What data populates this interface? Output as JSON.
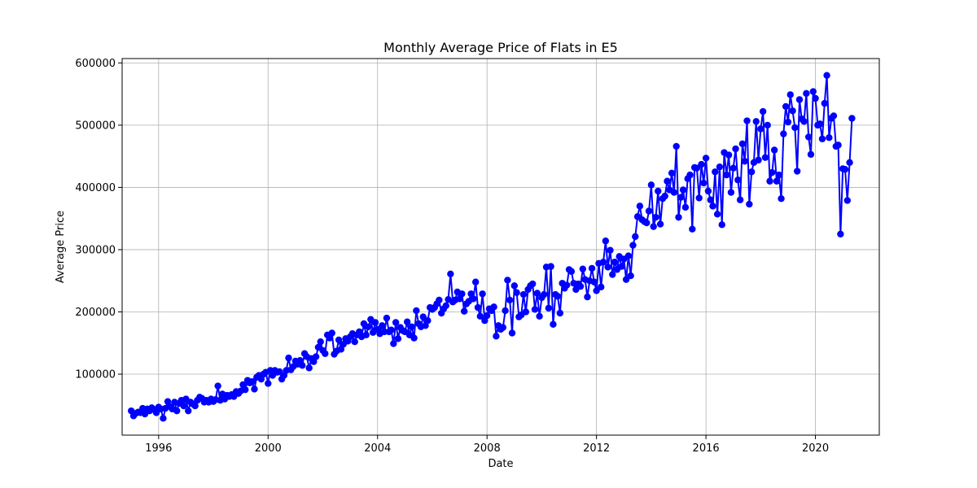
{
  "chart_data": {
    "type": "line",
    "title": "Monthly Average Price of Flats in E5",
    "xlabel": "Date",
    "ylabel": "Average Price",
    "x_ticks": [
      "1996",
      "2000",
      "2004",
      "2008",
      "2012",
      "2016",
      "2020"
    ],
    "y_ticks": [
      "100000",
      "200000",
      "300000",
      "400000",
      "500000",
      "600000"
    ],
    "xlim": [
      "1994-09",
      "2022-05"
    ],
    "ylim": [
      2000,
      607000
    ],
    "grid": true,
    "color": "#0000ff",
    "marker": "circle",
    "series": [
      {
        "x_start": "1995-01",
        "x_step": "1 month",
        "values": [
          41000,
          33000,
          37000,
          39000,
          38000,
          45000,
          36000,
          44000,
          41000,
          46000,
          43000,
          38000,
          47000,
          44000,
          29000,
          45000,
          56000,
          48000,
          44000,
          55000,
          41000,
          53000,
          58000,
          49000,
          60000,
          41000,
          55000,
          52000,
          49000,
          58000,
          63000,
          61000,
          55000,
          58000,
          55000,
          60000,
          56000,
          59000,
          81000,
          58000,
          68000,
          60000,
          66000,
          64000,
          67000,
          64000,
          72000,
          69000,
          73000,
          83000,
          75000,
          90000,
          86000,
          88000,
          76000,
          95000,
          98000,
          92000,
          100000,
          103000,
          85000,
          106000,
          98000,
          106000,
          103000,
          104000,
          92000,
          98000,
          106000,
          126000,
          107000,
          112000,
          121000,
          116000,
          122000,
          114000,
          133000,
          128000,
          110000,
          125000,
          120000,
          128000,
          143000,
          152000,
          138000,
          133000,
          163000,
          158000,
          166000,
          132000,
          137000,
          155000,
          140000,
          148000,
          157000,
          153000,
          160000,
          165000,
          152000,
          163000,
          168000,
          160000,
          181000,
          163000,
          176000,
          188000,
          167000,
          183000,
          172000,
          165000,
          178000,
          168000,
          190000,
          168000,
          171000,
          149000,
          183000,
          157000,
          175000,
          170000,
          168000,
          184000,
          163000,
          176000,
          158000,
          202000,
          181000,
          176000,
          192000,
          178000,
          186000,
          207000,
          204000,
          207000,
          213000,
          219000,
          198000,
          205000,
          210000,
          220000,
          261000,
          216000,
          219000,
          232000,
          221000,
          229000,
          201000,
          213000,
          217000,
          229000,
          221000,
          248000,
          207000,
          193000,
          229000,
          186000,
          194000,
          205000,
          202000,
          208000,
          161000,
          178000,
          172000,
          175000,
          202000,
          251000,
          219000,
          166000,
          242000,
          231000,
          192000,
          195000,
          228000,
          200000,
          236000,
          242000,
          245000,
          204000,
          230000,
          193000,
          223000,
          228000,
          272000,
          206000,
          273000,
          180000,
          228000,
          225000,
          198000,
          246000,
          238000,
          243000,
          268000,
          265000,
          246000,
          236000,
          245000,
          241000,
          269000,
          252000,
          224000,
          250000,
          270000,
          248000,
          234000,
          278000,
          240000,
          280000,
          314000,
          272000,
          299000,
          260000,
          280000,
          268000,
          289000,
          273000,
          285000,
          252000,
          290000,
          258000,
          307000,
          321000,
          353000,
          370000,
          348000,
          345000,
          343000,
          362000,
          404000,
          337000,
          352000,
          394000,
          341000,
          382000,
          386000,
          410000,
          396000,
          423000,
          392000,
          466000,
          352000,
          384000,
          396000,
          368000,
          414000,
          420000,
          333000,
          432000,
          431000,
          383000,
          437000,
          407000,
          447000,
          394000,
          380000,
          370000,
          425000,
          357000,
          433000,
          340000,
          456000,
          420000,
          452000,
          392000,
          431000,
          462000,
          412000,
          380000,
          470000,
          442000,
          507000,
          373000,
          425000,
          440000,
          506000,
          444000,
          494000,
          522000,
          448000,
          500000,
          410000,
          424000,
          460000,
          410000,
          420000,
          382000,
          486000,
          530000,
          505000,
          549000,
          523000,
          496000,
          426000,
          541000,
          510000,
          506000,
          551000,
          481000,
          453000,
          554000,
          543000,
          500000,
          502000,
          478000,
          535000,
          580000,
          480000,
          511000,
          515000,
          466000,
          468000,
          325000,
          430000,
          429000,
          379000,
          440000,
          511000
        ]
      }
    ]
  }
}
